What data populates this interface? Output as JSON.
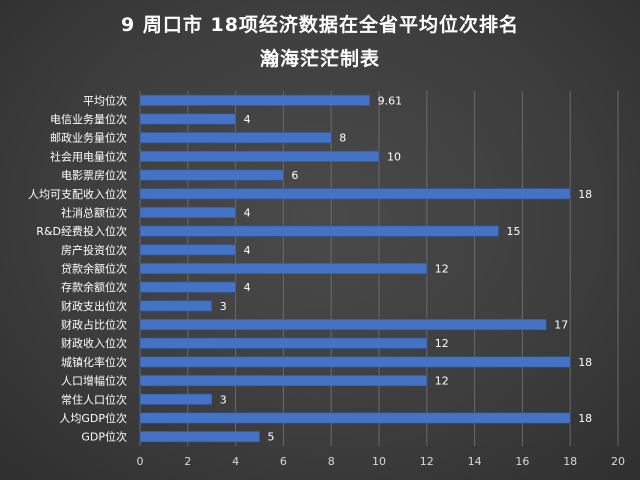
{
  "chart_data": {
    "type": "bar",
    "orientation": "horizontal",
    "title": "9 周口市 18项经济数据在全省平均位次排名",
    "subtitle": "瀚海茫茫制表",
    "categories": [
      "平均位次",
      "电信业务量位次",
      "邮政业务量位次",
      "社会用电量位次",
      "电影票房位次",
      "人均可支配收入位次",
      "社消总额位次",
      "R&D经费投入位次",
      "房产投资位次",
      "贷款余额位次",
      "存款余额位次",
      "财政支出位次",
      "财政占比位次",
      "财政收入位次",
      "城镇化率位次",
      "人口增幅位次",
      "常住人口位次",
      "人均GDP位次",
      "GDP位次"
    ],
    "values": [
      9.61,
      4,
      8,
      10,
      6,
      18,
      4,
      15,
      4,
      12,
      4,
      3,
      17,
      12,
      18,
      12,
      3,
      18,
      5
    ],
    "value_labels": [
      "9.61",
      "4",
      "8",
      "10",
      "6",
      "18",
      "4",
      "15",
      "4",
      "12",
      "4",
      "3",
      "17",
      "12",
      "18",
      "12",
      "3",
      "18",
      "5"
    ],
    "xlim": [
      0,
      20
    ],
    "xticks": [
      "0",
      "2",
      "4",
      "6",
      "8",
      "10",
      "12",
      "14",
      "16",
      "18",
      "20"
    ],
    "xtick_values": [
      0,
      2,
      4,
      6,
      8,
      10,
      12,
      14,
      16,
      18,
      20
    ],
    "grid": true,
    "legend": "none",
    "bar_color": "#4472c4",
    "background_color": "#3e3e3e"
  }
}
